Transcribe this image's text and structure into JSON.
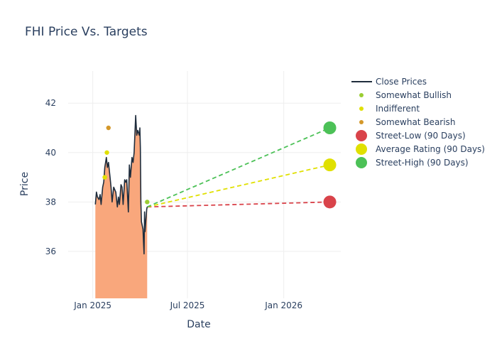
{
  "chart_data": {
    "type": "line",
    "title": "FHI Price Vs. Targets",
    "xlabel": "Date",
    "ylabel": "Price",
    "x_ticks": [
      {
        "date": "2025-01-01",
        "label": "Jan 2025"
      },
      {
        "date": "2025-07-01",
        "label": "Jul 2025"
      },
      {
        "date": "2026-01-01",
        "label": "Jan 2026"
      }
    ],
    "y_ticks": [
      36,
      38,
      40,
      42
    ],
    "xlim": [
      "2024-11-15",
      "2026-04-20"
    ],
    "ylim": [
      34.1,
      43.3
    ],
    "grid": true,
    "legend_position": "right",
    "colors": {
      "close": "#1f2d3d",
      "fill": "#f9a77c",
      "somewhat_bullish": "#9acd32",
      "indifferent": "#e0e000",
      "somewhat_bearish": "#d4982a",
      "street_low": "#d9434a",
      "average": "#e0e000",
      "street_high": "#4cc157",
      "grid": "#eeeeee",
      "text": "#2a3f5f"
    },
    "legend": [
      {
        "key": "close",
        "label": "Close Prices",
        "symbol": "line"
      },
      {
        "key": "somewhat_bullish",
        "label": "Somewhat Bullish",
        "symbol": "small"
      },
      {
        "key": "indifferent",
        "label": "Indifferent",
        "symbol": "small"
      },
      {
        "key": "somewhat_bearish",
        "label": "Somewhat Bearish",
        "symbol": "small"
      },
      {
        "key": "street_low",
        "label": "Street-Low (90 Days)",
        "symbol": "big"
      },
      {
        "key": "average",
        "label": "Average Rating (90 Days)",
        "symbol": "big"
      },
      {
        "key": "street_high",
        "label": "Street-High (90 Days)",
        "symbol": "big"
      }
    ],
    "close_series": [
      [
        "2025-01-06",
        37.9
      ],
      [
        "2025-01-08",
        38.4
      ],
      [
        "2025-01-10",
        38.2
      ],
      [
        "2025-01-13",
        38.1
      ],
      [
        "2025-01-15",
        38.3
      ],
      [
        "2025-01-17",
        37.9
      ],
      [
        "2025-01-20",
        38.6
      ],
      [
        "2025-01-22",
        38.8
      ],
      [
        "2025-01-24",
        39.4
      ],
      [
        "2025-01-27",
        39.8
      ],
      [
        "2025-01-29",
        39.4
      ],
      [
        "2025-01-31",
        39.6
      ],
      [
        "2025-02-03",
        39.0
      ],
      [
        "2025-02-05",
        38.6
      ],
      [
        "2025-02-07",
        38.0
      ],
      [
        "2025-02-10",
        38.6
      ],
      [
        "2025-02-12",
        38.5
      ],
      [
        "2025-02-14",
        38.4
      ],
      [
        "2025-02-17",
        37.8
      ],
      [
        "2025-02-19",
        38.2
      ],
      [
        "2025-02-21",
        37.9
      ],
      [
        "2025-02-24",
        38.7
      ],
      [
        "2025-02-26",
        38.6
      ],
      [
        "2025-02-28",
        37.9
      ],
      [
        "2025-03-03",
        38.9
      ],
      [
        "2025-03-05",
        38.8
      ],
      [
        "2025-03-07",
        38.9
      ],
      [
        "2025-03-10",
        37.6
      ],
      [
        "2025-03-12",
        39.5
      ],
      [
        "2025-03-14",
        39.0
      ],
      [
        "2025-03-17",
        39.8
      ],
      [
        "2025-03-19",
        39.6
      ],
      [
        "2025-03-21",
        40.0
      ],
      [
        "2025-03-24",
        41.5
      ],
      [
        "2025-03-26",
        40.7
      ],
      [
        "2025-03-28",
        40.9
      ],
      [
        "2025-03-31",
        40.7
      ],
      [
        "2025-04-01",
        41.0
      ],
      [
        "2025-04-02",
        40.2
      ],
      [
        "2025-04-03",
        38.0
      ],
      [
        "2025-04-04",
        37.2
      ],
      [
        "2025-04-07",
        36.9
      ],
      [
        "2025-04-08",
        36.4
      ],
      [
        "2025-04-09",
        35.9
      ],
      [
        "2025-04-10",
        37.6
      ],
      [
        "2025-04-11",
        36.8
      ],
      [
        "2025-04-14",
        37.7
      ],
      [
        "2025-04-15",
        37.8
      ]
    ],
    "analyst_ratings": [
      {
        "date": "2025-01-24",
        "price": 39.0,
        "category": "indifferent"
      },
      {
        "date": "2025-01-28",
        "price": 40.0,
        "category": "indifferent"
      },
      {
        "date": "2025-01-31",
        "price": 41.0,
        "category": "somewhat_bearish"
      },
      {
        "date": "2025-04-15",
        "price": 38.0,
        "category": "somewhat_bullish"
      }
    ],
    "targets": {
      "start_date": "2025-04-15",
      "start_price": 37.8,
      "end_date": "2026-03-30",
      "street_low": 38.0,
      "average": 39.5,
      "street_high": 41.0
    }
  }
}
